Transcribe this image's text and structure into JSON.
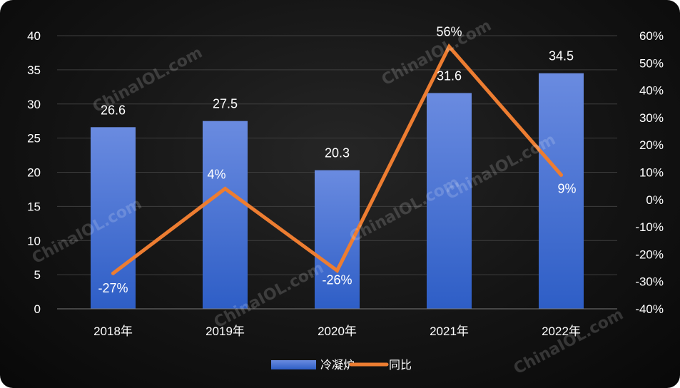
{
  "chart_data": {
    "type": "bar+line",
    "categories": [
      "2018年",
      "2019年",
      "2020年",
      "2021年",
      "2022年"
    ],
    "series": [
      {
        "name": "冷凝炉",
        "kind": "bar",
        "axis": "left",
        "values": [
          26.6,
          27.5,
          20.3,
          31.6,
          34.5
        ],
        "labels": [
          "26.6",
          "27.5",
          "20.3",
          "31.6",
          "34.5"
        ],
        "color_top": "#6a8be0",
        "color_bottom": "#2e5ec6"
      },
      {
        "name": "同比",
        "kind": "line",
        "axis": "right",
        "values": [
          -27,
          4,
          -26,
          56,
          9
        ],
        "labels": [
          "-27%",
          "4%",
          "-26%",
          "56%",
          "9%"
        ],
        "color": "#ed7d31"
      }
    ],
    "y_left": {
      "min": 0,
      "max": 40,
      "step": 5,
      "ticks": [
        "0",
        "5",
        "10",
        "15",
        "20",
        "25",
        "30",
        "35",
        "40"
      ]
    },
    "y_right": {
      "min": -40,
      "max": 60,
      "step": 10,
      "ticks": [
        "-40%",
        "-30%",
        "-20%",
        "-10%",
        "0%",
        "10%",
        "20%",
        "30%",
        "40%",
        "50%",
        "60%"
      ]
    },
    "grid": true,
    "legend_position": "bottom-center"
  },
  "watermark": "ChinaIOL.com"
}
